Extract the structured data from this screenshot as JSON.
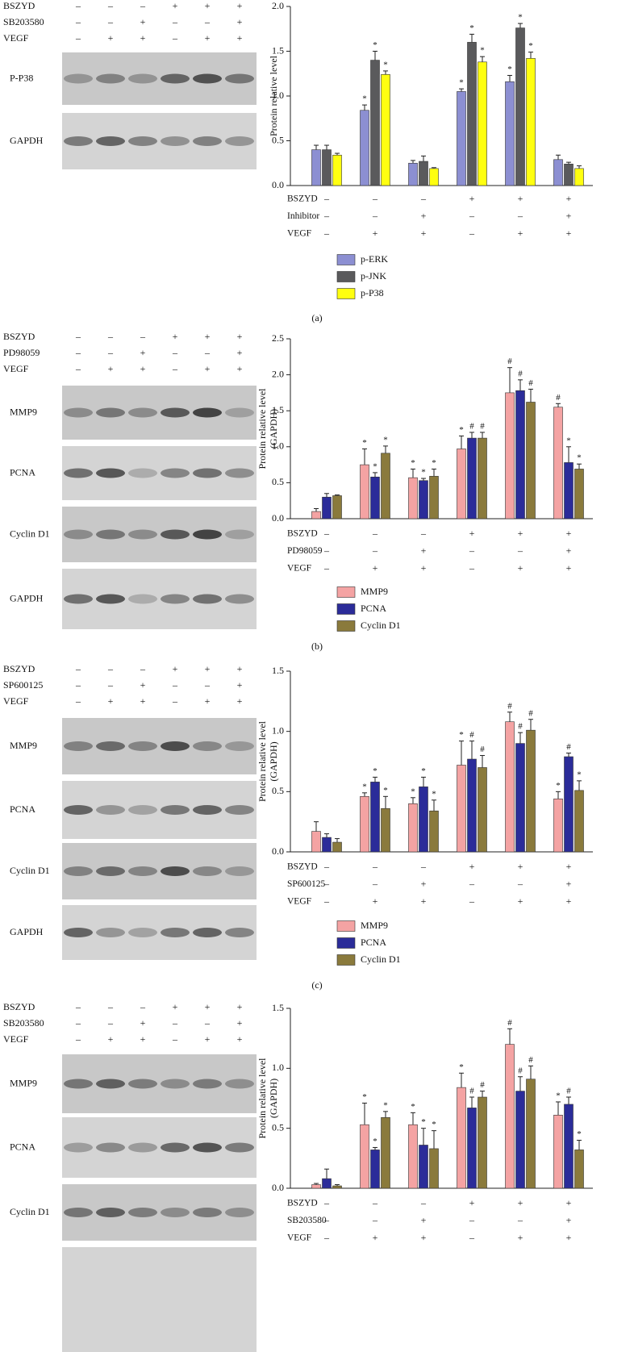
{
  "blots": [
    {
      "conditions": [
        {
          "label": "BSZYD",
          "signs": [
            "–",
            "–",
            "–",
            "+",
            "+",
            "+"
          ]
        },
        {
          "label": "SB203580",
          "signs": [
            "–",
            "–",
            "+",
            "–",
            "–",
            "+"
          ]
        },
        {
          "label": "VEGF",
          "signs": [
            "–",
            "+",
            "+",
            "–",
            "+",
            "+"
          ]
        }
      ],
      "rows": [
        "P-P38",
        "GAPDH"
      ]
    },
    {
      "conditions": [
        {
          "label": "BSZYD",
          "signs": [
            "–",
            "–",
            "–",
            "+",
            "+",
            "+"
          ]
        },
        {
          "label": "PD98059",
          "signs": [
            "–",
            "–",
            "+",
            "–",
            "–",
            "+"
          ]
        },
        {
          "label": "VEGF",
          "signs": [
            "–",
            "+",
            "+",
            "–",
            "+",
            "+"
          ]
        }
      ],
      "rows": [
        "MMP9",
        "PCNA",
        "Cyclin D1",
        "GAPDH"
      ]
    },
    {
      "conditions": [
        {
          "label": "BSZYD",
          "signs": [
            "–",
            "–",
            "–",
            "+",
            "+",
            "+"
          ]
        },
        {
          "label": "SP600125",
          "signs": [
            "–",
            "–",
            "+",
            "–",
            "–",
            "+"
          ]
        },
        {
          "label": "VEGF",
          "signs": [
            "–",
            "+",
            "+",
            "–",
            "+",
            "+"
          ]
        }
      ],
      "rows": [
        "MMP9",
        "PCNA",
        "Cyclin D1",
        "GAPDH"
      ]
    },
    {
      "conditions": [
        {
          "label": "BSZYD",
          "signs": [
            "–",
            "–",
            "–",
            "+",
            "+",
            "+"
          ]
        },
        {
          "label": "SB203580",
          "signs": [
            "–",
            "–",
            "+",
            "–",
            "–",
            "+"
          ]
        },
        {
          "label": "VEGF",
          "signs": [
            "–",
            "+",
            "+",
            "–",
            "+",
            "+"
          ]
        }
      ],
      "rows": [
        "MMP9",
        "PCNA",
        "Cyclin D1"
      ]
    }
  ],
  "panel_labels": [
    "(a)",
    "(b)",
    "(c)"
  ],
  "chart_data": [
    {
      "type": "bar",
      "ylabel": [
        "Protein relative level"
      ],
      "ylim": [
        0,
        2
      ],
      "yticks": [
        {
          "value": 0,
          "label": "0.0"
        },
        0.5,
        {
          "value": 1,
          "label": "1.0"
        },
        1.5,
        {
          "value": 2,
          "label": "2.0"
        }
      ],
      "legend": true,
      "categories": [
        null,
        null,
        null,
        null,
        null,
        null
      ],
      "condition_rows": [
        {
          "label": "BSZYD",
          "signs": [
            "–",
            "–",
            "–",
            "+",
            "+",
            "+"
          ]
        },
        {
          "label": "Inhibitor",
          "signs": [
            "–",
            "–",
            "+",
            "–",
            "–",
            "+"
          ]
        },
        {
          "label": "VEGF",
          "signs": [
            "–",
            "+",
            "+",
            "–",
            "+",
            "+"
          ]
        }
      ],
      "series": [
        {
          "name": "p-ERK",
          "color": "#8c8fd2",
          "values": [
            0.4,
            0.84,
            0.25,
            1.05,
            1.16,
            0.29
          ],
          "error": [
            0.05,
            0.06,
            0.03,
            0.03,
            0.07,
            0.05
          ],
          "markers": [
            null,
            "*",
            null,
            "*",
            "*",
            null
          ]
        },
        {
          "name": "p-JNK",
          "color": "#5a5a5c",
          "values": [
            0.4,
            1.4,
            0.27,
            1.6,
            1.76,
            0.24
          ],
          "error": [
            0.05,
            0.1,
            0.06,
            0.09,
            0.05,
            0.02
          ],
          "markers": [
            null,
            "*",
            null,
            "*",
            "*",
            null
          ]
        },
        {
          "name": "p-P38",
          "color": "#ffff10",
          "values": [
            0.34,
            1.24,
            0.19,
            1.38,
            1.42,
            0.19
          ],
          "error": [
            0.02,
            0.04,
            0.01,
            0.06,
            0.07,
            0.03
          ],
          "markers": [
            null,
            "*",
            null,
            "*",
            "*",
            null
          ]
        }
      ]
    },
    {
      "type": "bar",
      "ylabel": [
        "Protein relative level",
        "(GAPDH)"
      ],
      "ylim": [
        0,
        2.5
      ],
      "yticks": [
        {
          "value": 0,
          "label": "0.0"
        },
        0.5,
        {
          "value": 1,
          "label": "1.0"
        },
        1.5,
        {
          "value": 2,
          "label": "2.0"
        },
        2.5
      ],
      "legend": true,
      "categories": [
        null,
        null,
        null,
        null,
        null,
        null
      ],
      "condition_rows": [
        {
          "label": "BSZYD",
          "signs": [
            "–",
            "–",
            "–",
            "+",
            "+",
            "+"
          ]
        },
        {
          "label": "PD98059",
          "signs": [
            "–",
            "–",
            "+",
            "–",
            "–",
            "+"
          ]
        },
        {
          "label": "VEGF",
          "signs": [
            "–",
            "+",
            "+",
            "–",
            "+",
            "+"
          ]
        }
      ],
      "series": [
        {
          "name": "MMP9",
          "color": "#f4a3a3",
          "values": [
            0.1,
            0.75,
            0.57,
            0.97,
            1.75,
            1.55
          ],
          "error": [
            0.04,
            0.22,
            0.12,
            0.18,
            0.35,
            0.05
          ],
          "markers": [
            null,
            "*",
            "*",
            "*",
            "#",
            "#"
          ]
        },
        {
          "name": "PCNA",
          "color": "#2b2c99",
          "values": [
            0.3,
            0.58,
            0.53,
            1.12,
            1.78,
            0.78
          ],
          "error": [
            0.05,
            0.06,
            0.03,
            0.08,
            0.15,
            0.22
          ],
          "markers": [
            null,
            "*",
            "*",
            "#",
            "#",
            "*"
          ]
        },
        {
          "name": "Cyclin D1",
          "color": "#8a7a3c",
          "values": [
            0.32,
            0.91,
            0.59,
            1.12,
            1.62,
            0.69
          ],
          "error": [
            0.01,
            0.1,
            0.1,
            0.08,
            0.18,
            0.07
          ],
          "markers": [
            null,
            "*",
            "*",
            "#",
            "#",
            "*"
          ]
        }
      ]
    },
    {
      "type": "bar",
      "ylabel": [
        "Protein relative level",
        "(GAPDH)"
      ],
      "ylim": [
        0,
        1.5
      ],
      "yticks": [
        {
          "value": 0,
          "label": "0.0"
        },
        0.5,
        {
          "value": 1,
          "label": "1.0"
        },
        1.5
      ],
      "legend": true,
      "categories": [
        null,
        null,
        null,
        null,
        null,
        null
      ],
      "condition_rows": [
        {
          "label": "BSZYD",
          "signs": [
            "–",
            "–",
            "–",
            "+",
            "+",
            "+"
          ]
        },
        {
          "label": "SP600125",
          "signs": [
            "–",
            "–",
            "+",
            "–",
            "–",
            "+"
          ]
        },
        {
          "label": "VEGF",
          "signs": [
            "–",
            "+",
            "+",
            "–",
            "+",
            "+"
          ]
        }
      ],
      "series": [
        {
          "name": "MMP9",
          "color": "#f4a3a3",
          "values": [
            0.17,
            0.46,
            0.4,
            0.72,
            1.08,
            0.44
          ],
          "error": [
            0.08,
            0.03,
            0.05,
            0.2,
            0.08,
            0.06
          ],
          "markers": [
            null,
            "*",
            "*",
            "*",
            "#",
            "*"
          ]
        },
        {
          "name": "PCNA",
          "color": "#2b2c99",
          "values": [
            0.12,
            0.58,
            0.54,
            0.77,
            0.9,
            0.79
          ],
          "error": [
            0.03,
            0.04,
            0.08,
            0.15,
            0.09,
            0.03
          ],
          "markers": [
            null,
            "*",
            "*",
            "#",
            "#",
            "#"
          ]
        },
        {
          "name": "Cyclin D1",
          "color": "#8a7a3c",
          "values": [
            0.08,
            0.36,
            0.34,
            0.7,
            1.01,
            0.51
          ],
          "error": [
            0.03,
            0.1,
            0.09,
            0.1,
            0.09,
            0.08
          ],
          "markers": [
            null,
            "*",
            "*",
            "#",
            "#",
            "*"
          ]
        }
      ]
    },
    {
      "type": "bar",
      "ylabel": [
        "Protein relative level",
        "(GAPDH)"
      ],
      "ylim": [
        0,
        1.5
      ],
      "yticks": [
        {
          "value": 0,
          "label": "0.0"
        },
        0.5,
        {
          "value": 1,
          "label": "1.0"
        },
        1.5
      ],
      "legend": false,
      "categories": [
        null,
        null,
        null,
        null,
        null,
        null
      ],
      "condition_rows": [
        {
          "label": "BSZYD",
          "signs": [
            "–",
            "–",
            "–",
            "+",
            "+",
            "+"
          ]
        },
        {
          "label": "SB203580",
          "signs": [
            "–",
            "–",
            "+",
            "–",
            "–",
            "+"
          ]
        },
        {
          "label": "VEGF",
          "signs": [
            "–",
            "+",
            "+",
            "–",
            "+",
            "+"
          ]
        }
      ],
      "series": [
        {
          "color": "#f4a3a3",
          "values": [
            0.03,
            0.53,
            0.53,
            0.84,
            1.2,
            0.61
          ],
          "error": [
            0.01,
            0.18,
            0.1,
            0.12,
            0.13,
            0.11
          ],
          "markers": [
            null,
            "*",
            "*",
            "*",
            "#",
            "*"
          ]
        },
        {
          "color": "#2b2c99",
          "values": [
            0.08,
            0.32,
            0.36,
            0.67,
            0.81,
            0.7
          ],
          "error": [
            0.08,
            0.02,
            0.14,
            0.09,
            0.12,
            0.06
          ],
          "markers": [
            null,
            "*",
            "*",
            "#",
            "#",
            "#"
          ]
        },
        {
          "color": "#8a7a3c",
          "values": [
            0.02,
            0.59,
            0.33,
            0.76,
            0.91,
            0.32
          ],
          "error": [
            0.01,
            0.05,
            0.15,
            0.05,
            0.11,
            0.08
          ],
          "markers": [
            null,
            "*",
            "*",
            "#",
            "#",
            "*"
          ]
        }
      ]
    }
  ]
}
